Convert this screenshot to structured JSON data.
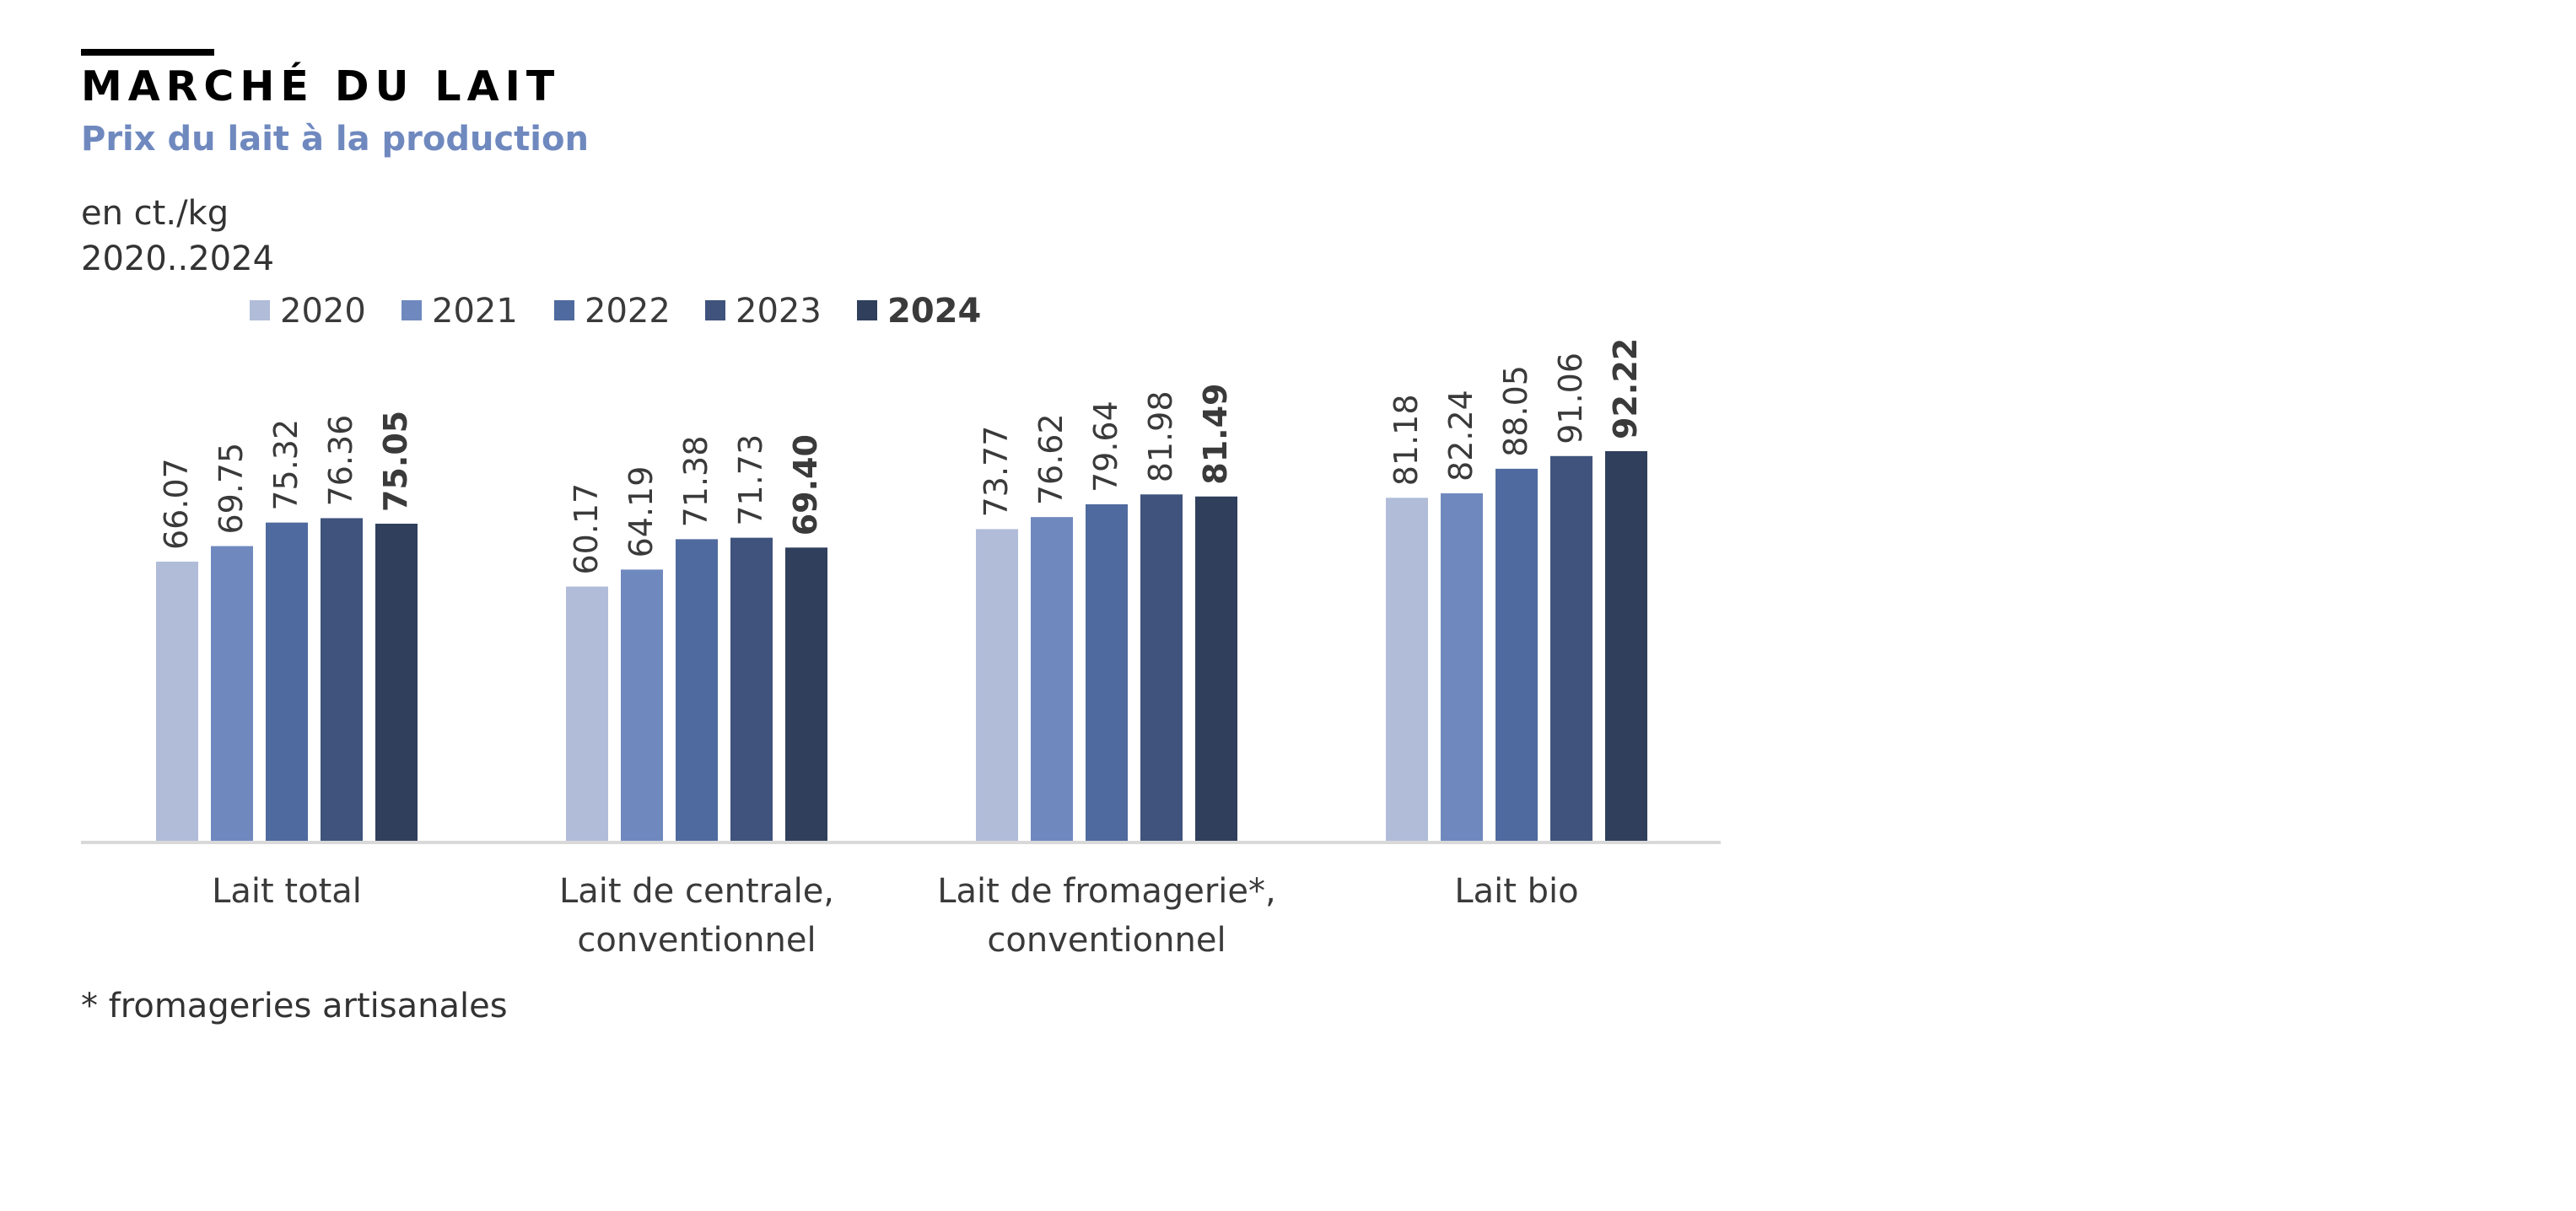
{
  "header": {
    "title": "MARCHÉ DU LAIT",
    "subtitle": "Prix du lait à la production",
    "unit": "en ct./kg",
    "period": "2020..2024"
  },
  "footnote": "* fromageries artisanales",
  "colors": {
    "accent": "#6f89bf",
    "baseline": "#d9d9d9",
    "series": [
      "#b0bcd8",
      "#6f89bf",
      "#4f6a9e",
      "#3f537c",
      "#2f3f5c"
    ]
  },
  "chart_data": {
    "type": "bar",
    "title": "Prix du lait à la production",
    "ylabel": "en ct./kg",
    "xlabel": "",
    "ylim": [
      0,
      100
    ],
    "grid": false,
    "legend_position": "top",
    "categories": [
      [
        "Lait total"
      ],
      [
        "Lait de centrale,",
        "conventionnel"
      ],
      [
        "Lait de fromagerie*,",
        "conventionnel"
      ],
      [
        "Lait bio"
      ]
    ],
    "series": [
      {
        "name": "2020",
        "bold": false,
        "values": [
          66.07,
          60.17,
          73.77,
          81.18
        ],
        "labels": [
          "66.07",
          "60.17",
          "73.77",
          "81.18"
        ]
      },
      {
        "name": "2021",
        "bold": false,
        "values": [
          69.75,
          64.19,
          76.62,
          82.24
        ],
        "labels": [
          "69.75",
          "64.19",
          "76.62",
          "82.24"
        ]
      },
      {
        "name": "2022",
        "bold": false,
        "values": [
          75.32,
          71.38,
          79.64,
          88.05
        ],
        "labels": [
          "75.32",
          "71.38",
          "79.64",
          "88.05"
        ]
      },
      {
        "name": "2023",
        "bold": false,
        "values": [
          76.36,
          71.73,
          81.98,
          91.06
        ],
        "labels": [
          "76.36",
          "71.73",
          "81.98",
          "91.06"
        ]
      },
      {
        "name": "2024",
        "bold": true,
        "values": [
          75.05,
          69.4,
          81.49,
          92.22
        ],
        "labels": [
          "75.05",
          "69.40",
          "81.49",
          "92.22"
        ]
      }
    ]
  }
}
